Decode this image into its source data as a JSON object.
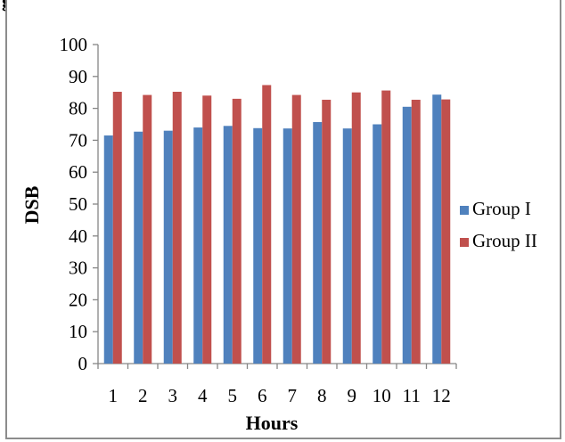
{
  "caption_fragment": "g",
  "chart_data": {
    "type": "bar",
    "title": "",
    "xlabel": "Hours",
    "ylabel": "DSB",
    "ylim": [
      0,
      100
    ],
    "yticks": [
      0,
      10,
      20,
      30,
      40,
      50,
      60,
      70,
      80,
      90,
      100
    ],
    "categories": [
      "1",
      "2",
      "3",
      "4",
      "5",
      "6",
      "7",
      "8",
      "9",
      "10",
      "11",
      "12"
    ],
    "series": [
      {
        "name": "Group I",
        "color": "#4f81bd",
        "values": [
          71.5,
          72.7,
          73.0,
          74.0,
          74.5,
          73.8,
          73.7,
          75.7,
          73.7,
          75.0,
          80.5,
          84.3
        ]
      },
      {
        "name": "Group II",
        "color": "#c0504d",
        "values": [
          85.2,
          84.2,
          85.2,
          84.0,
          83.0,
          87.3,
          84.2,
          82.7,
          85.0,
          85.6,
          82.7,
          82.8
        ]
      }
    ],
    "grid": false,
    "legend_position": "right"
  }
}
